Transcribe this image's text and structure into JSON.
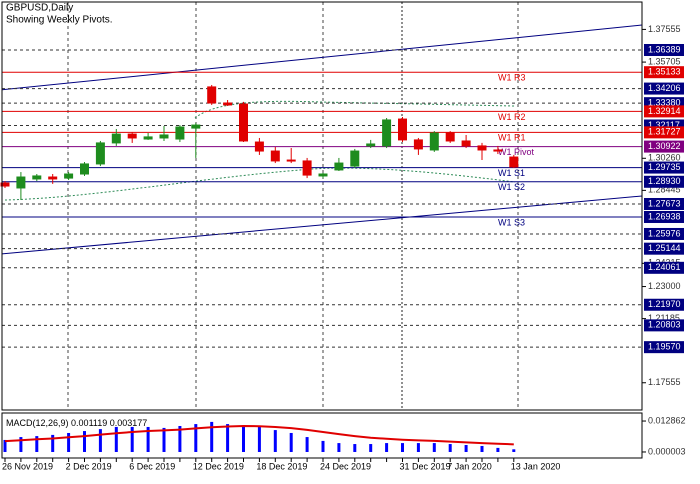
{
  "chart_data": [
    {
      "type": "candlestick",
      "title": "GBPUSD,Daily",
      "subtitle": "Showing Weekly Pivots.",
      "categories": [
        "26 Nov 2019",
        null,
        null,
        null,
        "2 Dec 2019",
        null,
        null,
        null,
        "6 Dec 2019",
        null,
        null,
        null,
        "12 Dec 2019",
        null,
        null,
        null,
        "18 Dec 2019",
        null,
        null,
        null,
        "24 Dec 2019",
        null,
        null,
        null,
        null,
        "31 Dec 2019",
        null,
        null,
        "7 Jan 2020",
        null,
        null,
        null,
        "13 Jan 2020"
      ],
      "open": [
        1.2886,
        1.2858,
        1.2909,
        1.292,
        1.2914,
        1.2937,
        1.2994,
        1.3113,
        1.3163,
        1.3135,
        1.3141,
        1.3135,
        1.3197,
        1.343,
        1.3339,
        1.3333,
        1.3118,
        1.3067,
        1.3016,
        1.3011,
        1.2926,
        1.296,
        1.2982,
        1.3096,
        1.3096,
        1.3248,
        1.313,
        1.3073,
        1.3169,
        1.3124,
        1.3096,
        1.3073,
        1.3033
      ],
      "high": [
        1.2897,
        1.2948,
        1.2937,
        1.2937,
        1.2948,
        1.3005,
        1.3124,
        1.3192,
        1.3175,
        1.3169,
        1.3209,
        1.3214,
        1.3226,
        1.3441,
        1.3356,
        1.3345,
        1.3141,
        1.309,
        1.3084,
        1.3028,
        1.2943,
        1.3028,
        1.3079,
        1.313,
        1.3254,
        1.326,
        1.3141,
        1.318,
        1.318,
        1.3158,
        1.3113,
        1.3096,
        1.3045
      ],
      "low": [
        1.2858,
        1.279,
        1.2897,
        1.2881,
        1.2903,
        1.2926,
        1.2982,
        1.3096,
        1.3113,
        1.313,
        1.3124,
        1.3118,
        1.3028,
        1.3328,
        1.3322,
        1.3118,
        1.3045,
        1.2999,
        1.2999,
        1.2914,
        1.2914,
        1.2954,
        1.2971,
        1.3084,
        1.3084,
        1.3118,
        1.3045,
        1.3062,
        1.3113,
        1.3084,
        1.3016,
        1.305,
        1.2971
      ],
      "close": [
        1.2869,
        1.292,
        1.2926,
        1.2909,
        1.2937,
        1.2994,
        1.3113,
        1.3163,
        1.3141,
        1.3147,
        1.3158,
        1.3203,
        1.3214,
        1.3339,
        1.3328,
        1.3124,
        1.3067,
        1.3011,
        1.3011,
        1.2931,
        1.2937,
        1.2999,
        1.3067,
        1.3107,
        1.3243,
        1.313,
        1.3079,
        1.3169,
        1.3124,
        1.3096,
        1.3073,
        1.3067,
        1.2977
      ],
      "up_color": "#1e8c1e",
      "down_color": "#e00000",
      "ylim": [
        1.16013,
        1.39106
      ],
      "yticks": [
        1.37555,
        1.35705,
        {
          "value": 1.3026,
          "label": "1.30260"
        },
        1.28445,
        1.24315,
        {
          "value": 1.23,
          "label": "1.23000"
        },
        1.21185,
        1.17555
      ],
      "levels": [
        {
          "value": 1.36389,
          "label": "1.36389",
          "color": "#000080"
        },
        {
          "value": 1.35133,
          "label": "1.35133",
          "name": "W1 R3",
          "color": "#e00000"
        },
        {
          "value": 1.34206,
          "label": "1.34206",
          "color": "#000080"
        },
        {
          "value": 1.3338,
          "label": "1.33380",
          "color": "#000080"
        },
        {
          "value": 1.32914,
          "label": "1.32914",
          "name": "W1 R2",
          "color": "#e00000"
        },
        {
          "value": 1.32117,
          "label": "1.32117",
          "color": "#000080"
        },
        {
          "value": 1.31727,
          "label": "1.31727",
          "name": "W1 R1",
          "color": "#e00000"
        },
        {
          "value": 1.30922,
          "label": "1.30922",
          "name": "W1 Pivot",
          "color": "#800080"
        },
        {
          "value": 1.29735,
          "label": "1.29735",
          "name": "W1 S1",
          "color": "#000080"
        },
        {
          "value": 1.2893,
          "label": "1.28930",
          "name": "W1 S2",
          "color": "#000080"
        },
        {
          "value": 1.27673,
          "label": "1.27673",
          "color": "#000080"
        },
        {
          "value": 1.26938,
          "label": "1.26938",
          "name": "W1 S3",
          "color": "#000080"
        },
        {
          "value": 1.25976,
          "label": "1.25976",
          "color": "#000080"
        },
        {
          "value": 1.25144,
          "label": "1.25144",
          "color": "#000080"
        },
        {
          "value": 1.24061,
          "label": "1.24061",
          "color": "#000080"
        },
        {
          "value": 1.2197,
          "label": "1.21970",
          "color": "#000080"
        },
        {
          "value": 1.20803,
          "label": "1.20803",
          "color": "#000080"
        },
        {
          "value": 1.1957,
          "label": "1.19570",
          "color": "#000080"
        }
      ]
    },
    {
      "type": "macd",
      "title": "MACD(12,26,9)",
      "series": [
        {
          "color": "#0000ff",
          "values": [
            0.005,
            0.0062,
            0.0066,
            0.0071,
            0.0079,
            0.0087,
            0.0095,
            0.0104,
            0.0104,
            0.0104,
            0.01,
            0.0108,
            0.0116,
            0.0125,
            0.0116,
            0.0104,
            0.0104,
            0.0091,
            0.0079,
            0.0062,
            0.0046,
            0.0037,
            0.0033,
            0.0033,
            0.0037,
            0.0037,
            0.0037,
            0.0037,
            0.0033,
            0.0029,
            0.0025,
            0.0017,
            0.001119
          ]
        },
        {
          "color": "#e00000",
          "values": [
            0.0045,
            0.0049,
            0.0053,
            0.0056,
            0.0061,
            0.0066,
            0.0072,
            0.0078,
            0.0083,
            0.0087,
            0.009,
            0.0093,
            0.0098,
            0.0103,
            0.0106,
            0.0108,
            0.0107,
            0.0104,
            0.0099,
            0.0092,
            0.0083,
            0.0074,
            0.0066,
            0.0059,
            0.0055,
            0.0051,
            0.0048,
            0.0046,
            0.0043,
            0.004,
            0.0037,
            0.0034,
            0.003177
          ]
        }
      ],
      "ylim": [
        -0.0025,
        0.0162
      ],
      "yticks": [
        0.012862,
        3e-06
      ]
    }
  ]
}
